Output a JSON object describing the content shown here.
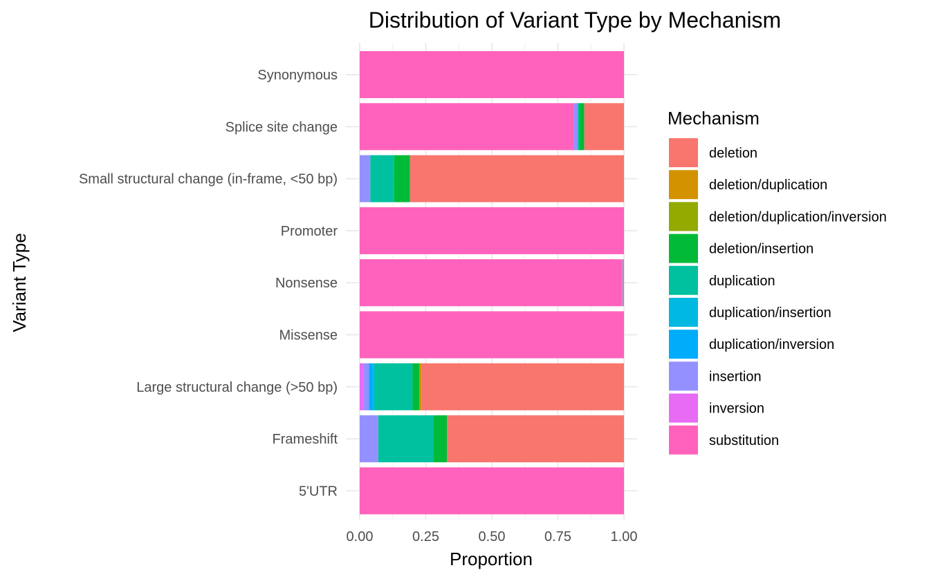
{
  "chart_data": {
    "type": "bar",
    "orientation": "horizontal",
    "stacked": true,
    "title": "Distribution of Variant Type by Mechanism",
    "xlabel": "Proportion",
    "ylabel": "Variant Type",
    "xlim": [
      0,
      1
    ],
    "x_ticks": [
      "0.00",
      "0.25",
      "0.50",
      "0.75",
      "1.00"
    ],
    "grid": true,
    "legend": {
      "title": "Mechanism",
      "position": "right"
    },
    "categories": [
      "Synonymous",
      "Splice site change",
      "Small structural change (in-frame, <50 bp)",
      "Promoter",
      "Nonsense",
      "Missense",
      "Large structural change (>50 bp)",
      "Frameshift",
      "5'UTR"
    ],
    "series": [
      {
        "name": "deletion",
        "color": "#F8766D",
        "values": [
          0,
          0.15,
          0.81,
          0,
          0.005,
          0,
          0.765,
          0.67,
          0
        ]
      },
      {
        "name": "deletion/duplication",
        "color": "#D39200",
        "values": [
          0,
          0,
          0,
          0,
          0,
          0,
          0.01,
          0,
          0
        ]
      },
      {
        "name": "deletion/duplication/inversion",
        "color": "#93AA00",
        "values": [
          0,
          0,
          0,
          0,
          0,
          0,
          0,
          0,
          0
        ]
      },
      {
        "name": "deletion/insertion",
        "color": "#00BA38",
        "values": [
          0,
          0.02,
          0.06,
          0,
          0,
          0,
          0.025,
          0.05,
          0
        ]
      },
      {
        "name": "duplication",
        "color": "#00C19F",
        "values": [
          0,
          0.005,
          0.09,
          0,
          0,
          0,
          0.145,
          0.21,
          0
        ]
      },
      {
        "name": "duplication/insertion",
        "color": "#00B9E3",
        "values": [
          0,
          0,
          0,
          0,
          0,
          0,
          0.005,
          0,
          0
        ]
      },
      {
        "name": "duplication/inversion",
        "color": "#00ADFA",
        "values": [
          0,
          0,
          0,
          0,
          0,
          0,
          0.015,
          0,
          0
        ]
      },
      {
        "name": "insertion",
        "color": "#9590FF",
        "values": [
          0,
          0.015,
          0.04,
          0,
          0.005,
          0,
          0.02,
          0.07,
          0
        ]
      },
      {
        "name": "inversion",
        "color": "#E76BF3",
        "values": [
          0,
          0,
          0,
          0,
          0,
          0,
          0.015,
          0,
          0
        ]
      },
      {
        "name": "substitution",
        "color": "#FF62BC",
        "values": [
          1,
          0.81,
          0,
          1,
          0.99,
          1,
          0,
          0,
          1
        ]
      }
    ]
  }
}
